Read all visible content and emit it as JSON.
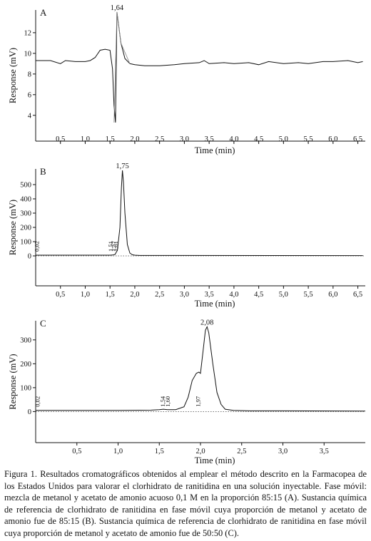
{
  "caption": "Figura 1. Resultados cromatográficos obtenidos al emplear el método descrito en la Farmacopea de los Estados Unidos para valorar el clorhidrato de ranitidina en una solución inyectable. Fase móvil: mezcla de metanol y acetato de amonio acuoso 0,1 M en la proporción 85:15 (A). Sustancia química de referencia de clorhidrato de ranitidina en fase móvil cuya proporción de metanol y acetato de amonio fue de 85:15 (B). Sustancia química de referencia de clorhidrato de ranitidina en fase móvil cuya proporción de metanol y acetato de amonio fue de 50:50 (C).",
  "chart_data": [
    {
      "panel": "A",
      "type": "line",
      "xlabel": "Time (min)",
      "ylabel": "Response (mV)",
      "xlim": [
        0,
        6.65
      ],
      "ylim": [
        1.5,
        14.2
      ],
      "x_ticks": [
        0.5,
        1.0,
        1.5,
        2.0,
        2.5,
        3.0,
        3.5,
        4.0,
        4.5,
        5.0,
        5.5,
        6.0,
        6.5
      ],
      "x_tick_labels": [
        "0,5",
        "1,0",
        "1,5",
        "2,0",
        "2,5",
        "3,0",
        "3,5",
        "4,0",
        "4,5",
        "5,0",
        "5,5",
        "6,0",
        "6,5"
      ],
      "y_ticks": [
        4,
        6,
        8,
        10,
        12
      ],
      "y_tick_labels": [
        "4",
        "6",
        "8",
        "10",
        "12"
      ],
      "peak_labels": [
        {
          "x": 1.64,
          "y": 14.0,
          "text": "1,64"
        }
      ],
      "series": [
        {
          "x": [
            0,
            0.3,
            0.5,
            0.6,
            0.8,
            1.0,
            1.1,
            1.2,
            1.3,
            1.4,
            1.5,
            1.55,
            1.58,
            1.61,
            1.64,
            1.68,
            1.72,
            1.8,
            1.9,
            2.0,
            2.2,
            2.5,
            2.8,
            3.0,
            3.3,
            3.4,
            3.5,
            3.8,
            4.0,
            4.3,
            4.5,
            4.7,
            5.0,
            5.3,
            5.5,
            5.8,
            6.0,
            6.3,
            6.5,
            6.6
          ],
          "y": [
            9.3,
            9.3,
            9.0,
            9.3,
            9.2,
            9.2,
            9.3,
            9.6,
            10.3,
            10.4,
            10.3,
            8.5,
            5.0,
            3.3,
            14.0,
            12.5,
            11.0,
            9.5,
            9.0,
            8.9,
            8.8,
            8.8,
            8.9,
            9.0,
            9.1,
            9.3,
            9.0,
            9.1,
            9.0,
            9.1,
            8.9,
            9.2,
            9.0,
            9.1,
            9.0,
            9.2,
            9.2,
            9.3,
            9.1,
            9.2
          ]
        },
        {
          "x": [
            1.58,
            1.64,
            1.72,
            1.9
          ],
          "y": [
            3.3,
            14.0,
            11.0,
            9.0
          ]
        }
      ]
    },
    {
      "panel": "B",
      "type": "line",
      "xlabel": "Time (min)",
      "ylabel": "Response (mV)",
      "xlim": [
        0,
        6.65
      ],
      "ylim": [
        -210,
        610
      ],
      "x_ticks": [
        0.5,
        1.0,
        1.5,
        2.0,
        2.5,
        3.0,
        3.5,
        4.0,
        4.5,
        5.0,
        5.5,
        6.0,
        6.5
      ],
      "x_tick_labels": [
        "0,5",
        "1,0",
        "1,5",
        "2,0",
        "2,5",
        "3,0",
        "3,5",
        "4,0",
        "4,5",
        "5,0",
        "5,5",
        "6,0",
        "6,5"
      ],
      "y_ticks": [
        0,
        100,
        200,
        300,
        400,
        500
      ],
      "y_tick_labels": [
        "0",
        "100",
        "200",
        "300",
        "400",
        "500"
      ],
      "peak_labels": [
        {
          "x": 1.75,
          "y": 600,
          "text": "1,75"
        },
        {
          "x": 0.02,
          "y": 30,
          "text": "0,02",
          "vertical": true
        },
        {
          "x": 1.51,
          "y": 30,
          "text": "1,51",
          "vertical": true
        },
        {
          "x": 1.57,
          "y": 30,
          "text": "1,57",
          "vertical": true
        },
        {
          "x": 1.61,
          "y": 30,
          "text": "1,61",
          "vertical": true
        }
      ],
      "series": [
        {
          "x": [
            0,
            1.5,
            1.55,
            1.6,
            1.65,
            1.7,
            1.73,
            1.75,
            1.77,
            1.8,
            1.85,
            1.9,
            1.95,
            2.0,
            2.1,
            3.0,
            6.6
          ],
          "y": [
            5,
            5,
            6,
            10,
            40,
            200,
            480,
            600,
            520,
            300,
            80,
            20,
            8,
            5,
            3,
            3,
            2
          ]
        }
      ]
    },
    {
      "panel": "C",
      "type": "line",
      "xlabel": "Time (min)",
      "ylabel": "Response (mV)",
      "xlim": [
        0,
        4.0
      ],
      "ylim": [
        -130,
        380
      ],
      "x_ticks": [
        0.5,
        1.0,
        1.5,
        2.0,
        2.5,
        3.0,
        3.5
      ],
      "x_tick_labels": [
        "0,5",
        "1,0",
        "1,5",
        "2,0",
        "2,5",
        "3,0",
        "3,5"
      ],
      "y_ticks": [
        0,
        100,
        200,
        300
      ],
      "y_tick_labels": [
        "0",
        "100",
        "200",
        "300"
      ],
      "peak_labels": [
        {
          "x": 2.08,
          "y": 355,
          "text": "2,08"
        },
        {
          "x": 0.02,
          "y": 20,
          "text": "0,02",
          "vertical": true
        },
        {
          "x": 1.54,
          "y": 20,
          "text": "1,54",
          "vertical": true
        },
        {
          "x": 1.6,
          "y": 20,
          "text": "1,60",
          "vertical": true
        },
        {
          "x": 1.97,
          "y": 20,
          "text": "1,97",
          "vertical": true
        }
      ],
      "series": [
        {
          "x": [
            0,
            1.0,
            1.4,
            1.5,
            1.55,
            1.6,
            1.7,
            1.8,
            1.85,
            1.9,
            1.95,
            1.98,
            2.0,
            2.03,
            2.06,
            2.08,
            2.1,
            2.15,
            2.2,
            2.25,
            2.3,
            2.4,
            2.6,
            3.0,
            4.0
          ],
          "y": [
            5,
            5,
            6,
            8,
            10,
            8,
            8,
            20,
            60,
            130,
            160,
            165,
            160,
            250,
            340,
            355,
            330,
            200,
            80,
            30,
            10,
            5,
            3,
            3,
            2
          ]
        }
      ]
    }
  ]
}
